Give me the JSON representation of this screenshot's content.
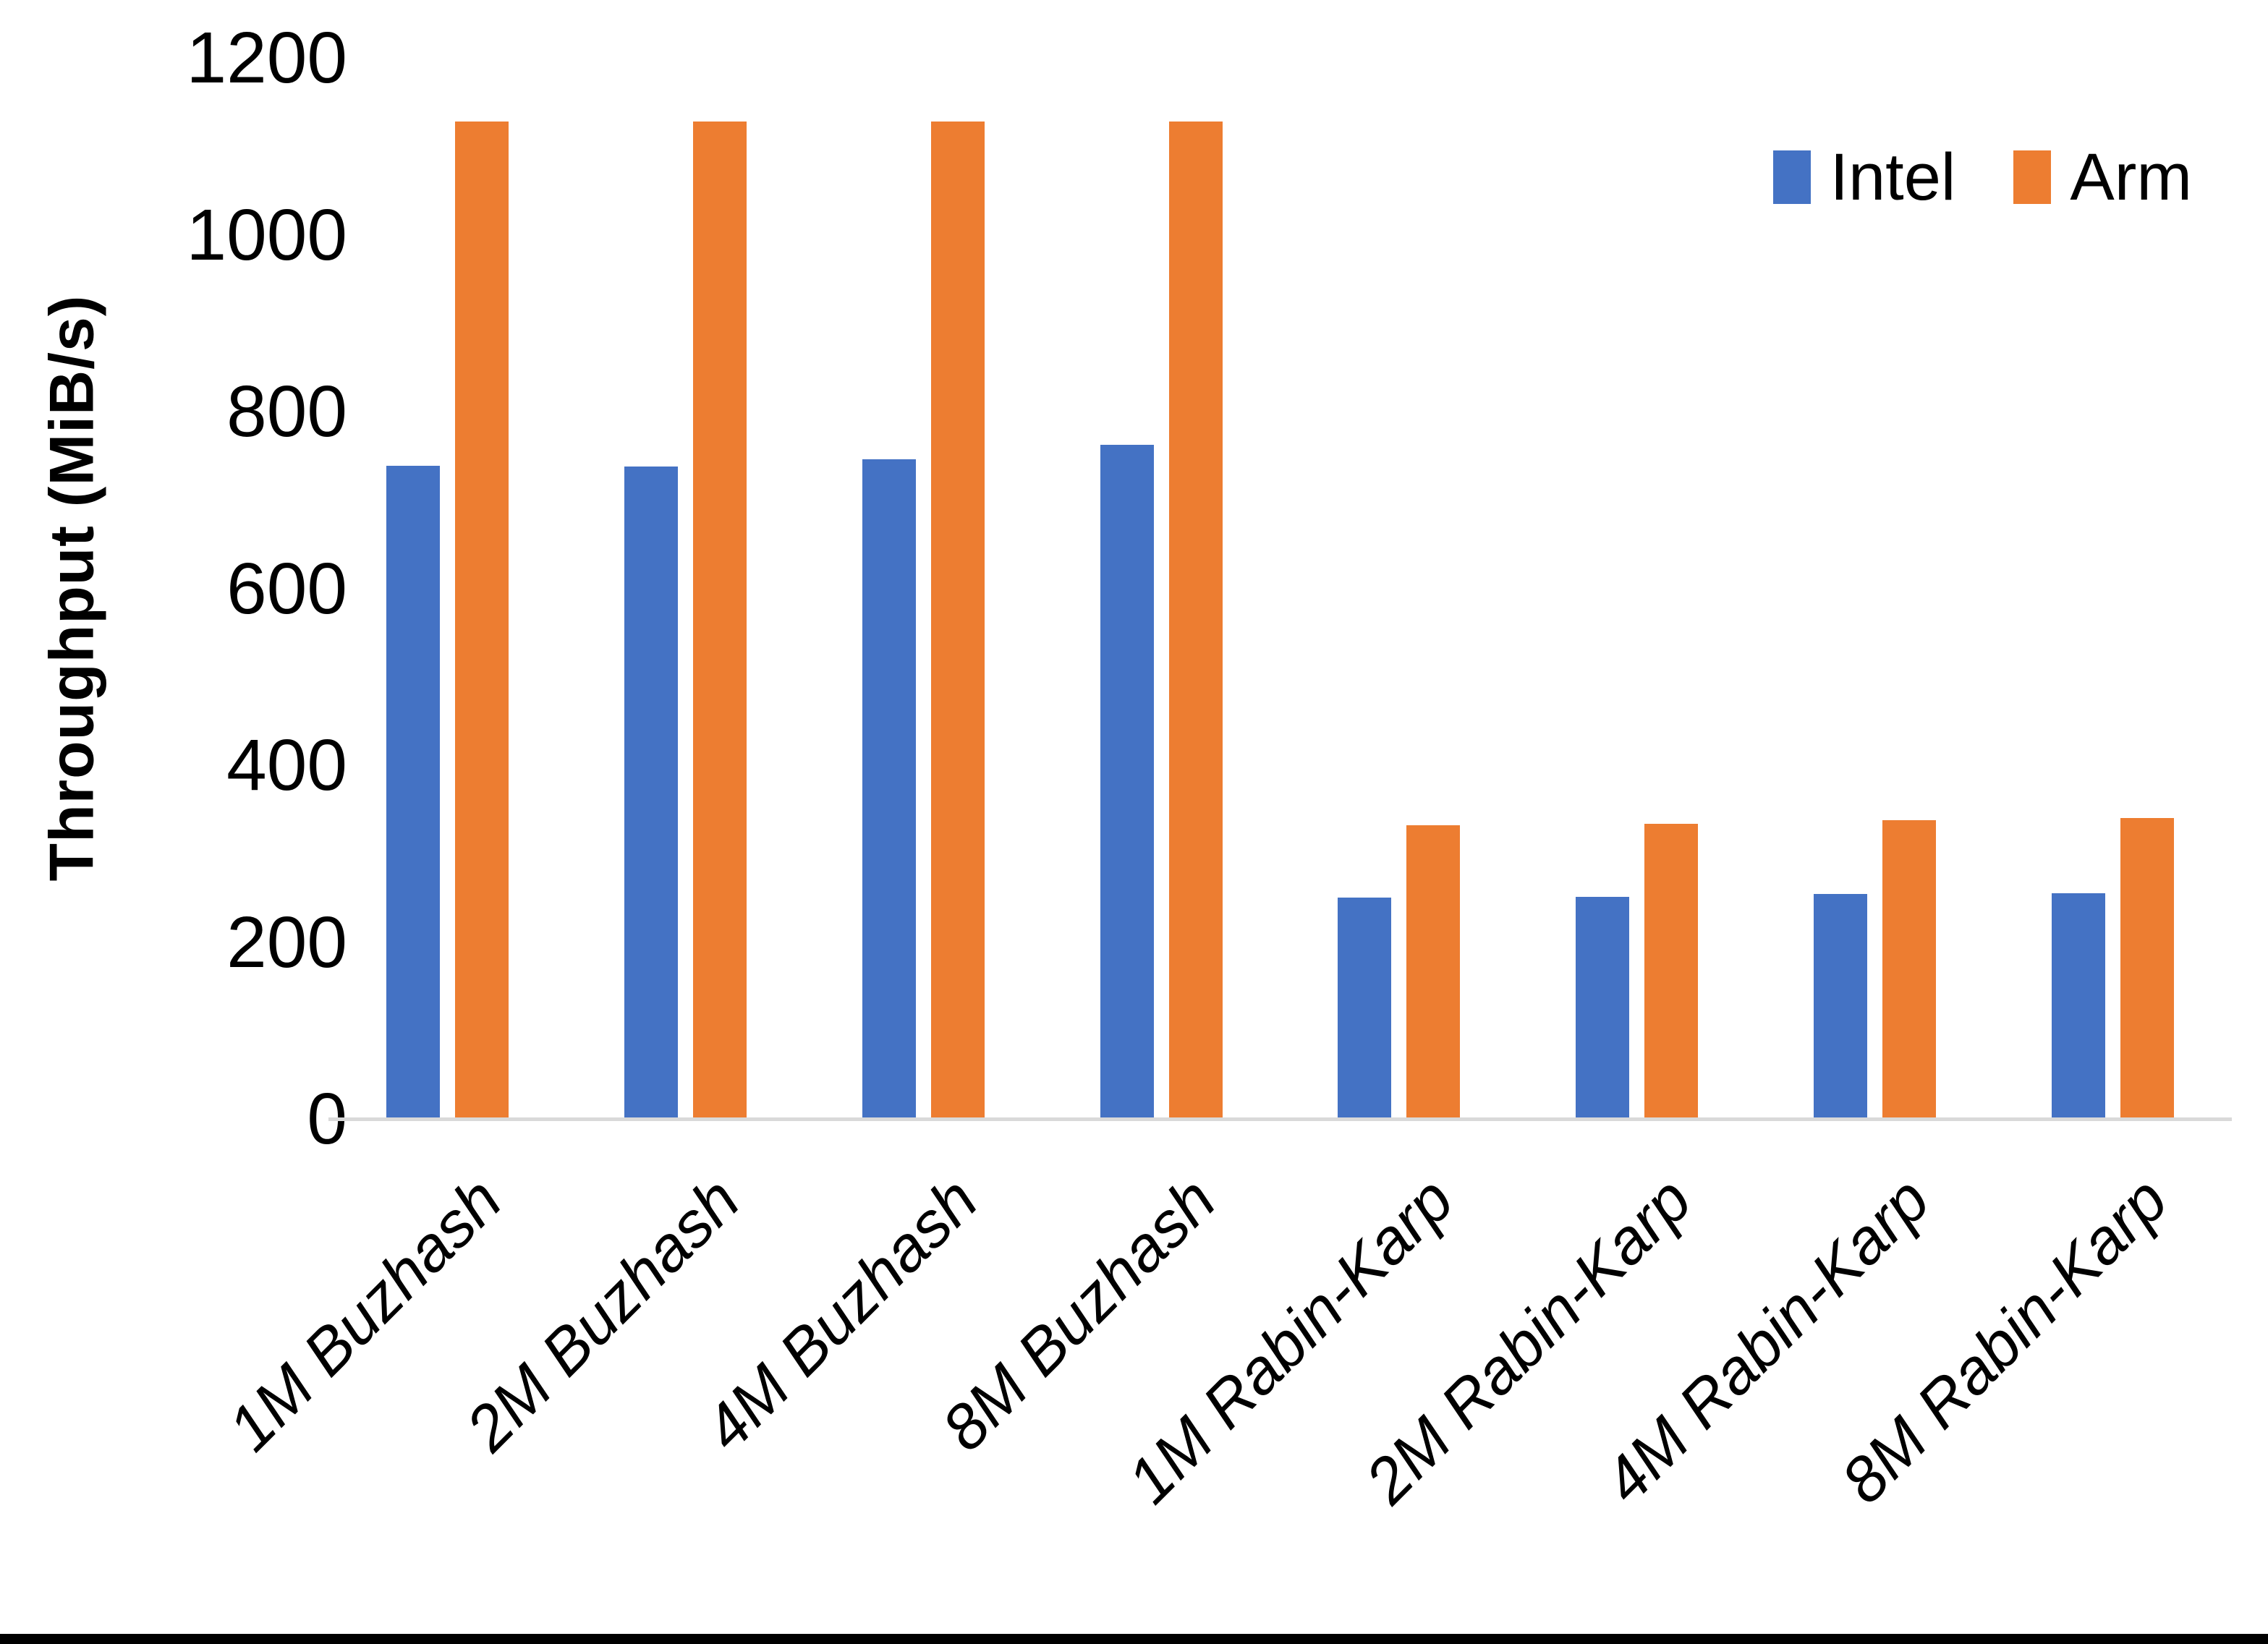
{
  "chart_data": {
    "type": "bar",
    "title": "",
    "xlabel": "",
    "ylabel": "Throughput (MiB/s)",
    "categories": [
      "1M Buzhash",
      "2M Buzhash",
      "4M Buzhash",
      "8M Buzhash",
      "1M Rabin-Karp",
      "2M Rabin-Karp",
      "4M Rabin-Karp",
      "8M Rabin-Karp"
    ],
    "series": [
      {
        "name": "Intel",
        "color": "#4472C4",
        "values": [
          739,
          738,
          746,
          762,
          250,
          251,
          254,
          255
        ]
      },
      {
        "name": "Arm",
        "color": "#ED7D31",
        "values": [
          1128,
          1128,
          1128,
          1128,
          332,
          334,
          338,
          340
        ]
      }
    ],
    "ylim": [
      0,
      1200
    ],
    "yticks": [
      0,
      200,
      400,
      600,
      800,
      1000,
      1200
    ],
    "grid": false,
    "legend_position": "top-right",
    "axis_line_color": "#D9D9D9"
  }
}
